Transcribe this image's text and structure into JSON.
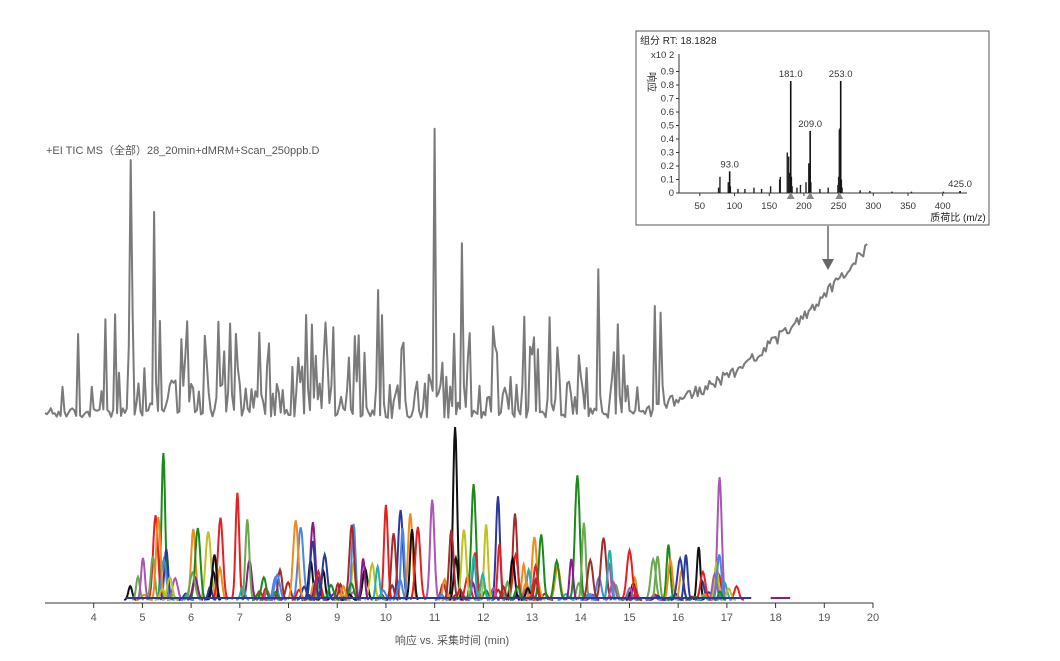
{
  "chart_data": [
    {
      "type": "line",
      "name": "main-chromatogram",
      "xlabel": "响应 vs. 采集时间 (min)",
      "xlim": [
        3,
        20
      ],
      "x_ticks": [
        4,
        5,
        6,
        7,
        8,
        9,
        10,
        11,
        12,
        13,
        14,
        15,
        16,
        17,
        18,
        19,
        20
      ],
      "tic_label": "+EI TIC MS（全部）28_20min+dMRM+Scan_250ppb.D",
      "tic_color": "#7a7a7a",
      "tic_spikes": [
        {
          "x": 4.75,
          "h": 1.0
        },
        {
          "x": 5.25,
          "h": 0.8
        },
        {
          "x": 11.0,
          "h": 1.12
        },
        {
          "x": 11.55,
          "h": 0.68
        },
        {
          "x": 9.85,
          "h": 0.5
        },
        {
          "x": 14.35,
          "h": 0.58
        }
      ],
      "mrm_peaks_fixed": [
        {
          "x": 5.43,
          "h": 0.85,
          "color": "#1a8a1a"
        },
        {
          "x": 5.27,
          "h": 0.49,
          "color": "#e62020"
        },
        {
          "x": 6.95,
          "h": 0.62,
          "color": "#e62020"
        },
        {
          "x": 11.42,
          "h": 1.0,
          "color": "#111111"
        },
        {
          "x": 11.8,
          "h": 0.67,
          "color": "#1a8a1a"
        },
        {
          "x": 13.93,
          "h": 0.72,
          "color": "#1a8a1a"
        },
        {
          "x": 16.85,
          "h": 0.71,
          "color": "#a855b4"
        },
        {
          "x": 10.0,
          "h": 0.55,
          "color": "#e62020"
        },
        {
          "x": 10.3,
          "h": 0.52,
          "color": "#2a3a9a"
        },
        {
          "x": 10.5,
          "h": 0.5,
          "color": "#f08a1c"
        },
        {
          "x": 10.95,
          "h": 0.58,
          "color": "#a855b4"
        },
        {
          "x": 12.3,
          "h": 0.6,
          "color": "#2a3a9a"
        },
        {
          "x": 12.65,
          "h": 0.5,
          "color": "#a52a2a"
        },
        {
          "x": 8.25,
          "h": 0.42,
          "color": "#4a86e8"
        },
        {
          "x": 8.5,
          "h": 0.45,
          "color": "#8b1a8b"
        },
        {
          "x": 4.75,
          "h": 0.08,
          "color": "#111111"
        },
        {
          "x": 17.2,
          "h": 0.08,
          "color": "#e62020"
        },
        {
          "x": 15.8,
          "h": 0.32,
          "color": "#1a8a1a"
        }
      ],
      "mrm_colors": [
        "#e62020",
        "#1a8a1a",
        "#2a3a9a",
        "#f08a1c",
        "#a855b4",
        "#111111",
        "#4a86e8",
        "#8b1a8b",
        "#c0c020",
        "#20b0b0",
        "#a52a2a",
        "#6aa84f"
      ]
    },
    {
      "type": "bar",
      "name": "mass-spectrum-inset",
      "title": "组分 RT: 18.1828",
      "ylabel": "响应",
      "y_scale_label": "x10 2",
      "xlabel": "质荷比 (m/z)",
      "xlim": [
        20,
        435
      ],
      "ylim": [
        0,
        1.0
      ],
      "x_ticks": [
        50,
        100,
        150,
        200,
        250,
        300,
        350,
        400
      ],
      "y_ticks": [
        "0",
        "0.1",
        "0.2",
        "0.3",
        "0.4",
        "0.5",
        "0.6",
        "0.7",
        "0.8",
        "0.9"
      ],
      "peaks": [
        {
          "mz": 93.0,
          "rel": 0.16,
          "label": "93.0"
        },
        {
          "mz": 181.0,
          "rel": 0.83,
          "label": "181.0"
        },
        {
          "mz": 209.0,
          "rel": 0.46,
          "label": "209.0"
        },
        {
          "mz": 253.0,
          "rel": 0.83,
          "label": "253.0"
        },
        {
          "mz": 425.0,
          "rel": 0.015,
          "label": "425.0"
        }
      ],
      "minor_peaks": [
        {
          "mz": 77,
          "rel": 0.04
        },
        {
          "mz": 79,
          "rel": 0.12
        },
        {
          "mz": 91,
          "rel": 0.08
        },
        {
          "mz": 94,
          "rel": 0.05
        },
        {
          "mz": 105,
          "rel": 0.03
        },
        {
          "mz": 115,
          "rel": 0.03
        },
        {
          "mz": 128,
          "rel": 0.04
        },
        {
          "mz": 139,
          "rel": 0.03
        },
        {
          "mz": 152,
          "rel": 0.05
        },
        {
          "mz": 165,
          "rel": 0.1
        },
        {
          "mz": 166,
          "rel": 0.12
        },
        {
          "mz": 176,
          "rel": 0.3
        },
        {
          "mz": 178,
          "rel": 0.27
        },
        {
          "mz": 179,
          "rel": 0.15
        },
        {
          "mz": 182,
          "rel": 0.12
        },
        {
          "mz": 183,
          "rel": 0.05
        },
        {
          "mz": 190,
          "rel": 0.04
        },
        {
          "mz": 195,
          "rel": 0.06
        },
        {
          "mz": 203,
          "rel": 0.08
        },
        {
          "mz": 207,
          "rel": 0.22
        },
        {
          "mz": 208,
          "rel": 0.18
        },
        {
          "mz": 210,
          "rel": 0.08
        },
        {
          "mz": 223,
          "rel": 0.03
        },
        {
          "mz": 235,
          "rel": 0.04
        },
        {
          "mz": 249,
          "rel": 0.06
        },
        {
          "mz": 250,
          "rel": 0.12
        },
        {
          "mz": 251,
          "rel": 0.47
        },
        {
          "mz": 252,
          "rel": 0.48
        },
        {
          "mz": 254,
          "rel": 0.1
        },
        {
          "mz": 255,
          "rel": 0.04
        },
        {
          "mz": 281,
          "rel": 0.02
        },
        {
          "mz": 295,
          "rel": 0.015
        },
        {
          "mz": 327,
          "rel": 0.01
        },
        {
          "mz": 355,
          "rel": 0.01
        },
        {
          "mz": 401,
          "rel": 0.01
        }
      ],
      "markers_mz": [
        181,
        209,
        251
      ]
    }
  ]
}
